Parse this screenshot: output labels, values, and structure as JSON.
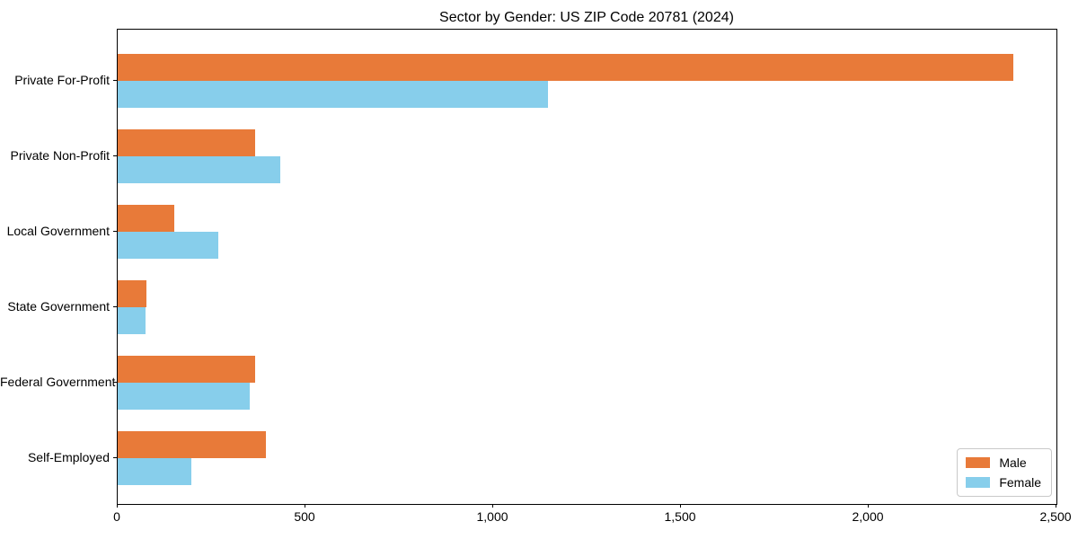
{
  "chart_data": {
    "type": "bar",
    "orientation": "horizontal",
    "title": "Sector by Gender: US ZIP Code 20781 (2024)",
    "categories": [
      "Private For-Profit",
      "Private Non-Profit",
      "Local Government",
      "State Government",
      "Federal Government",
      "Self-Employed"
    ],
    "series": [
      {
        "name": "Male",
        "color": "#e87a39",
        "values": [
          2386,
          366,
          150,
          77,
          367,
          395
        ]
      },
      {
        "name": "Female",
        "color": "#87ceeb",
        "values": [
          1146,
          434,
          268,
          74,
          351,
          196
        ]
      }
    ],
    "x_axis": {
      "min": 0,
      "max": 2500,
      "ticks": [
        {
          "value": 0,
          "label": "0"
        },
        {
          "value": 500,
          "label": "500"
        },
        {
          "value": 1000,
          "label": "1,000"
        },
        {
          "value": 1500,
          "label": "1,500"
        },
        {
          "value": 2000,
          "label": "2,000"
        },
        {
          "value": 2500,
          "label": "2,500"
        }
      ]
    },
    "legend": {
      "position": "lower-right"
    },
    "grid": false,
    "background": "#ffffff"
  }
}
